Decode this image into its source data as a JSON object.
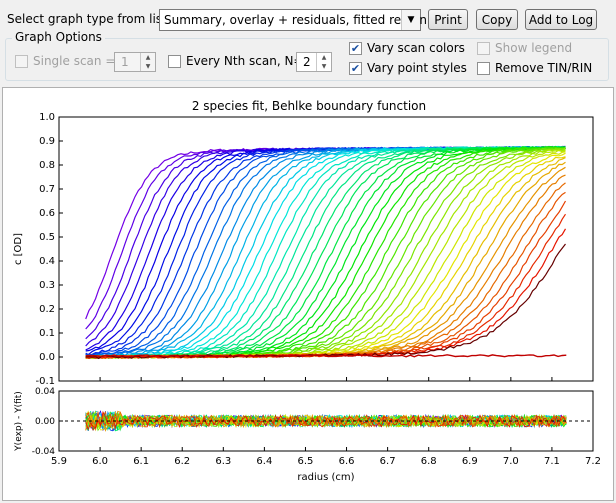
{
  "toolbar": {
    "select_label": "Select graph type from list:",
    "graph_type_value": "Summary, overlay + residuals, fitted region",
    "print_label": "Print",
    "copy_label": "Copy",
    "add_to_log_label": "Add to Log"
  },
  "options": {
    "group_title": "Graph Options",
    "single_scan": {
      "label": "Single scan =",
      "checked": false,
      "enabled": false,
      "value": "1"
    },
    "every_nth": {
      "label": "Every Nth scan, N=",
      "checked": false,
      "enabled": true,
      "value": "2"
    },
    "vary_scan_colors": {
      "label": "Vary scan colors",
      "checked": true
    },
    "vary_point_styles": {
      "label": "Vary point styles",
      "checked": true
    },
    "show_legend": {
      "label": "Show legend",
      "checked": false,
      "enabled": false
    },
    "remove_tin_rin": {
      "label": "Remove TIN/RIN",
      "checked": false
    }
  },
  "chart_data": [
    {
      "type": "scatter",
      "title": "2 species fit, Behlke boundary function",
      "xlabel": "radius (cm)",
      "ylabel": "c [OD]",
      "xlim": [
        5.9,
        7.2
      ],
      "ylim": [
        -0.1,
        1.0
      ],
      "x_ticks": [
        "5.9",
        "6.0",
        "6.1",
        "6.2",
        "6.3",
        "6.4",
        "6.5",
        "6.6",
        "6.7",
        "6.8",
        "6.9",
        "7.0",
        "7.1",
        "7.2"
      ],
      "y_ticks": [
        "-0.1",
        "0.0",
        "0.1",
        "0.2",
        "0.3",
        "0.4",
        "0.5",
        "0.6",
        "0.7",
        "0.8",
        "0.9",
        "1.0"
      ],
      "fitted_region": [
        5.965,
        7.14
      ],
      "plateau": 0.86,
      "boundary_first_cm": 6.03,
      "boundary_last_cm": 7.12,
      "n_scans": 50,
      "color_scheme": "rainbow violet→red"
    },
    {
      "type": "scatter",
      "title": "",
      "xlabel": "radius (cm)",
      "ylabel": "Y(exp) - Y(fit)",
      "xlim": [
        5.9,
        7.2
      ],
      "ylim": [
        -0.04,
        0.04
      ],
      "y_ticks": [
        "-0.04",
        "0.00",
        "0.04"
      ],
      "residual_amplitude": 0.012,
      "zero_line": "dashed"
    }
  ]
}
